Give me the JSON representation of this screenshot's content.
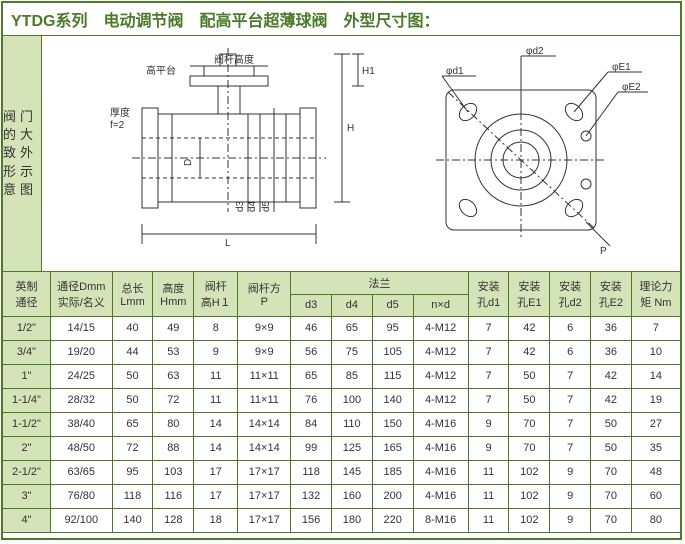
{
  "title": "YTDG系列　电动调节阀　配高平台超薄球阀　外型尺寸图：",
  "side": "阀门的大致外形示意图",
  "labels": {
    "h1": "H1",
    "h": "H",
    "l": "L",
    "d": "D",
    "d3": "d3",
    "d4": "d4",
    "d5": "d5",
    "hp": "高平台",
    "stem": "阀杆高度",
    "thick": "厚度",
    "f": "f=2",
    "phid1": "φd1",
    "phid2": "φd2",
    "phie1": "φE1",
    "phie2": "φE2",
    "p": "P"
  },
  "headers": {
    "c0a": "英制",
    "c0b": "通径",
    "c1a": "通径Dmm",
    "c1b": "实际/名义",
    "c2a": "总长",
    "c2b": "Lmm",
    "c3a": "高度",
    "c3b": "Hmm",
    "c4a": "阀杆",
    "c4b": "高H１",
    "c5a": "阀杆方",
    "c5b": "P",
    "c6": "法兰",
    "c6a": "d3",
    "c6b": "d4",
    "c6c": "d5",
    "c6d": "n×d",
    "c7a": "安装",
    "c7b": "孔d1",
    "c8a": "安装",
    "c8b": "孔E1",
    "c9a": "安装",
    "c9b": "孔d2",
    "c10a": "安装",
    "c10b": "孔E2",
    "c11a": "理论力",
    "c11b": "矩 Nm"
  },
  "rows": [
    [
      "1/2\"",
      "14/15",
      "40",
      "49",
      "8",
      "9×9",
      "46",
      "65",
      "95",
      "4-M12",
      "7",
      "42",
      "6",
      "36",
      "7"
    ],
    [
      "3/4\"",
      "19/20",
      "44",
      "53",
      "9",
      "9×9",
      "56",
      "75",
      "105",
      "4-M12",
      "7",
      "42",
      "6",
      "36",
      "10"
    ],
    [
      "1\"",
      "24/25",
      "50",
      "63",
      "11",
      "11×11",
      "65",
      "85",
      "115",
      "4-M12",
      "7",
      "50",
      "7",
      "42",
      "14"
    ],
    [
      "1-1/4\"",
      "28/32",
      "50",
      "72",
      "11",
      "11×11",
      "76",
      "100",
      "140",
      "4-M12",
      "7",
      "50",
      "7",
      "42",
      "19"
    ],
    [
      "1-1/2\"",
      "38/40",
      "65",
      "80",
      "14",
      "14×14",
      "84",
      "110",
      "150",
      "4-M16",
      "9",
      "70",
      "7",
      "50",
      "27"
    ],
    [
      "2\"",
      "48/50",
      "72",
      "88",
      "14",
      "14×14",
      "99",
      "125",
      "165",
      "4-M16",
      "9",
      "70",
      "7",
      "50",
      "35"
    ],
    [
      "2-1/2\"",
      "63/65",
      "95",
      "103",
      "17",
      "17×17",
      "118",
      "145",
      "185",
      "4-M16",
      "11",
      "102",
      "9",
      "70",
      "48"
    ],
    [
      "3\"",
      "76/80",
      "118",
      "116",
      "17",
      "17×17",
      "132",
      "160",
      "200",
      "4-M16",
      "11",
      "102",
      "9",
      "70",
      "60"
    ],
    [
      "4\"",
      "92/100",
      "140",
      "128",
      "18",
      "17×17",
      "156",
      "180",
      "220",
      "8-M16",
      "11",
      "102",
      "9",
      "70",
      "80"
    ]
  ]
}
